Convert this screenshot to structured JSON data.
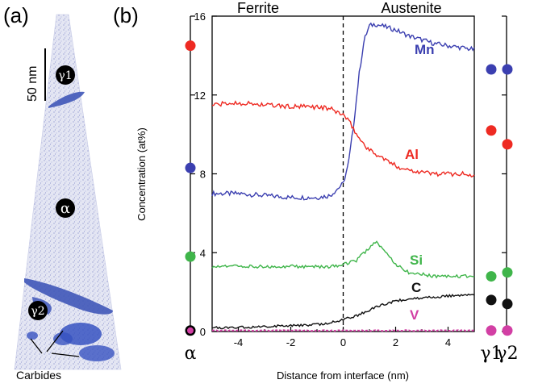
{
  "panel_a": {
    "label": "(a)",
    "scale_bar_label": "50 nm",
    "region_labels": {
      "gamma1": "γ1",
      "alpha": "α",
      "gamma2": "γ2"
    },
    "carbides_label": "Carbides"
  },
  "colors": {
    "Mn": "#3b3fb0",
    "Al": "#ee2a22",
    "Si": "#3fb54a",
    "C": "#111111",
    "V": "#d23fa4",
    "tip": "#9aa0d6",
    "precipitate": "#3f56b8"
  },
  "chart_data": {
    "type": "line",
    "panel_label": "(b)",
    "xlabel": "Distance from interface (nm)",
    "ylabel": "Concentration (at%)",
    "xlim": [
      -5,
      5
    ],
    "ylim": [
      0,
      16
    ],
    "x_ticks": [
      -4,
      -2,
      0,
      2,
      4
    ],
    "y_ticks": [
      0,
      4,
      8,
      12,
      16
    ],
    "phase_labels": [
      "Ferrite",
      "Austenite"
    ],
    "interface_x": 0,
    "series": [
      {
        "name": "Mn",
        "x": [
          -5,
          -4,
          -3,
          -2,
          -1,
          -0.5,
          0,
          0.2,
          0.4,
          0.6,
          0.8,
          1.0,
          1.2,
          1.5,
          2,
          2.5,
          3,
          3.5,
          4,
          4.5,
          5
        ],
        "values": [
          7.0,
          7.0,
          6.9,
          6.8,
          6.8,
          6.9,
          7.5,
          8.5,
          10.5,
          13.0,
          14.8,
          15.5,
          15.6,
          15.5,
          15.3,
          15.0,
          14.8,
          14.6,
          14.5,
          14.4,
          14.3
        ]
      },
      {
        "name": "Al",
        "x": [
          -5,
          -4,
          -3,
          -2,
          -1,
          -0.5,
          0,
          0.3,
          0.6,
          1.0,
          1.5,
          2,
          2.5,
          3,
          3.5,
          4,
          4.5,
          5
        ],
        "values": [
          11.5,
          11.6,
          11.5,
          11.4,
          11.4,
          11.3,
          11.0,
          10.5,
          9.8,
          9.2,
          8.8,
          8.4,
          8.2,
          8.1,
          8.0,
          8.0,
          8.0,
          7.9
        ]
      },
      {
        "name": "Si",
        "x": [
          -5,
          -4,
          -3,
          -2,
          -1,
          -0.5,
          0,
          0.5,
          0.8,
          1.1,
          1.3,
          1.6,
          2.0,
          2.5,
          3,
          3.5,
          4,
          4.5,
          5
        ],
        "values": [
          3.3,
          3.3,
          3.3,
          3.3,
          3.3,
          3.3,
          3.4,
          3.6,
          4.0,
          4.4,
          4.5,
          4.0,
          3.4,
          3.0,
          2.9,
          2.8,
          2.8,
          2.8,
          2.8
        ]
      },
      {
        "name": "C",
        "x": [
          -5,
          -4,
          -3,
          -2,
          -1,
          -0.5,
          0,
          0.5,
          1.0,
          1.5,
          2,
          2.5,
          3,
          3.5,
          4,
          4.5,
          5
        ],
        "values": [
          0.2,
          0.2,
          0.25,
          0.3,
          0.35,
          0.45,
          0.6,
          0.8,
          1.1,
          1.35,
          1.55,
          1.65,
          1.7,
          1.75,
          1.8,
          1.85,
          1.85
        ]
      },
      {
        "name": "V",
        "x": [
          -5,
          -3,
          -1,
          0,
          1,
          3,
          5
        ],
        "values": [
          0.05,
          0.05,
          0.05,
          0.05,
          0.05,
          0.05,
          0.05
        ]
      }
    ],
    "alpha_points": {
      "label": "α",
      "Al": 14.5,
      "Mn": 8.3,
      "Si": 3.8,
      "V": 0.05
    },
    "gamma1_points": {
      "label": "γ1",
      "Mn": 13.3,
      "Al": 10.2,
      "Si": 2.8,
      "C": 1.6,
      "V": 0.05
    },
    "gamma2_points": {
      "label": "γ2",
      "Mn": 13.3,
      "Al": 9.5,
      "Si": 3.0,
      "C": 1.4,
      "V": 0.05
    }
  }
}
